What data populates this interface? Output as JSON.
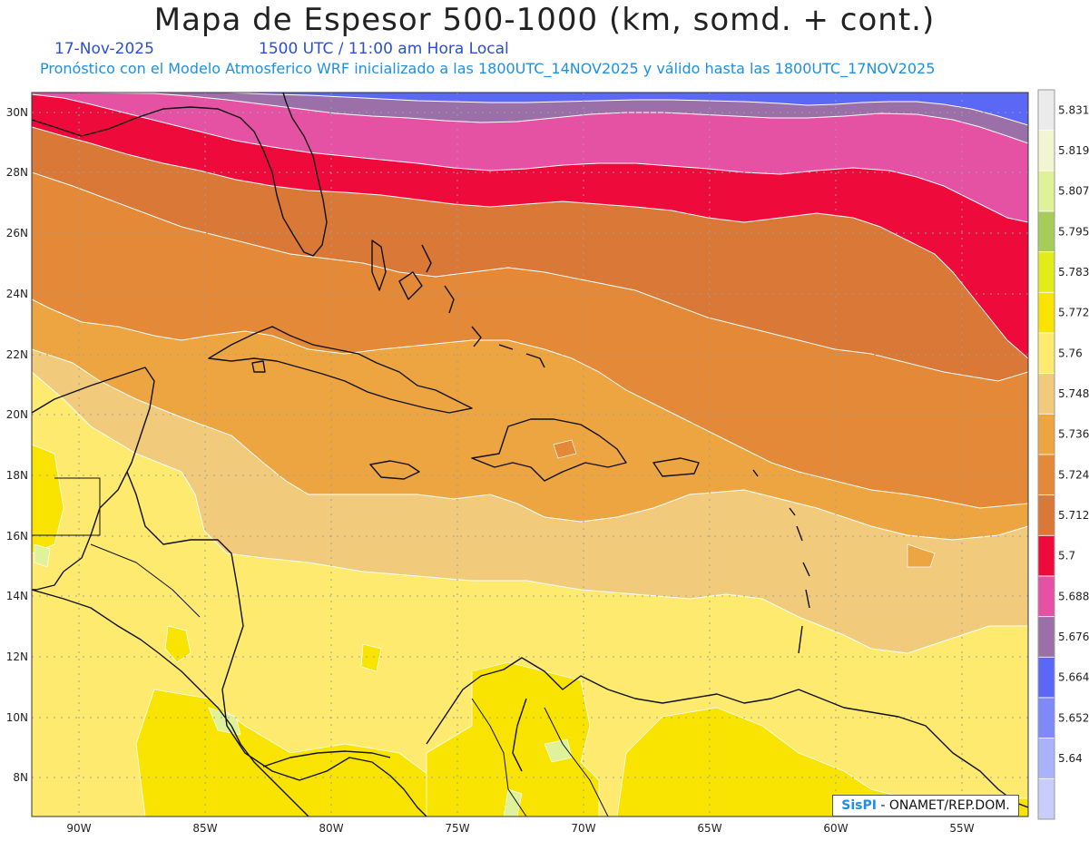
{
  "header": {
    "title": "Mapa de Espesor 500-1000 (km, somd. + cont.)",
    "date": "17-Nov-2025",
    "time": "1500 UTC / 11:00 am Hora Local",
    "subtitle": "Pronóstico con el Modelo Atmosferico WRF inicializado a las 1800UTC_14NOV2025 y válido hasta las  1800UTC_17NOV2025"
  },
  "axes": {
    "lon_ticks": [
      "90W",
      "85W",
      "80W",
      "75W",
      "70W",
      "65W",
      "60W",
      "55W"
    ],
    "lat_ticks": [
      "30N",
      "28N",
      "26N",
      "24N",
      "22N",
      "20N",
      "18N",
      "16N",
      "14N",
      "12N",
      "10N",
      "8N"
    ]
  },
  "legend": {
    "levels": [
      "5.831",
      "5.819",
      "5.807",
      "5.795",
      "5.783",
      "5.772",
      "5.76",
      "5.748",
      "5.736",
      "5.724",
      "5.712",
      "5.7",
      "5.688",
      "5.676",
      "5.664",
      "5.652",
      "5.64"
    ],
    "colors": [
      "#ebebeb",
      "#f2f6d0",
      "#dff29a",
      "#a6cc5a",
      "#e2ec18",
      "#f8e400",
      "#fdea6e",
      "#f1cb7b",
      "#eca541",
      "#e38938",
      "#d97837",
      "#ee0a3a",
      "#e552a3",
      "#9b6fa8",
      "#5b68f5",
      "#7f8af8",
      "#a9b3fb",
      "#c8cdfb"
    ]
  },
  "chart_data": {
    "type": "heatmap",
    "variable": "Espesor 500-1000",
    "units": "km",
    "lon_range": [
      -92,
      -52.5
    ],
    "lat_range": [
      6.8,
      30.7
    ],
    "bands_north_to_south": [
      {
        "lower": 5.664,
        "upper": 5.676,
        "region": "northeast corner, north of 29N"
      },
      {
        "lower": 5.676,
        "upper": 5.688,
        "region": "north of Florida to 27N-29N"
      },
      {
        "lower": 5.688,
        "upper": 5.7,
        "region": "northern Florida to 26N east"
      },
      {
        "lower": 5.7,
        "upper": 5.712,
        "region": "central Florida, 26N-28N; east 21N-25N"
      },
      {
        "lower": 5.712,
        "upper": 5.724,
        "region": "Bahamas, Cuba, 21N-27N"
      },
      {
        "lower": 5.724,
        "upper": 5.736,
        "region": "Greater Antilles, 17N-22N"
      },
      {
        "lower": 5.736,
        "upper": 5.748,
        "region": "Caribbean Sea 16N-19N"
      },
      {
        "lower": 5.748,
        "upper": 5.76,
        "region": "Central Caribbean 12N-17N"
      },
      {
        "lower": 5.76,
        "upper": 5.772,
        "region": "Southern Caribbean 8N-14N"
      },
      {
        "lower": 5.772,
        "upper": 5.783,
        "region": "Central America, Colombia, Venezuela interior"
      }
    ]
  },
  "credit": {
    "brand": "SisPI",
    "text": "- ONAMET/REP.DOM."
  }
}
